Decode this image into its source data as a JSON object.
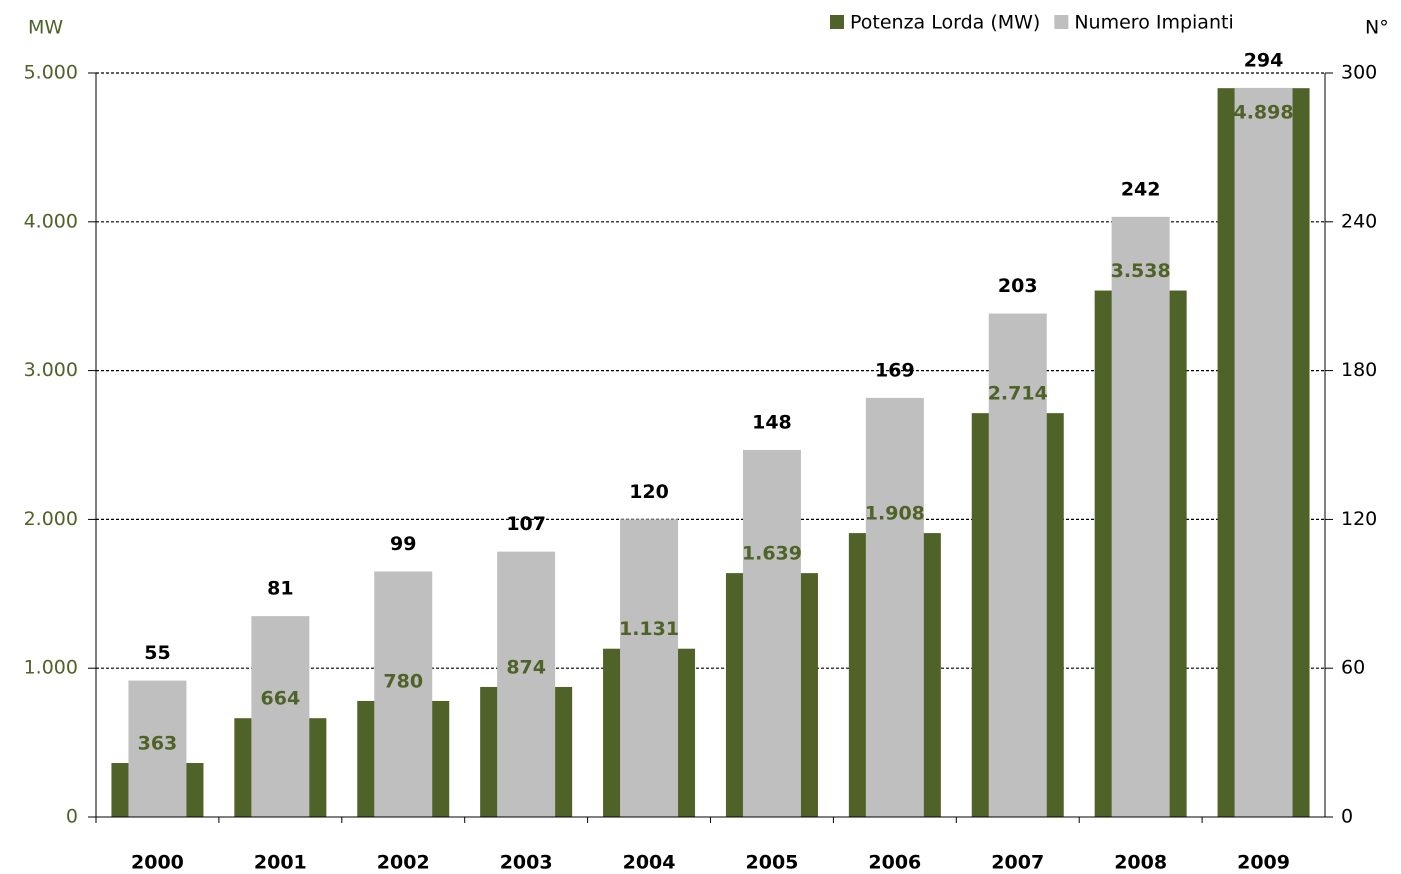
{
  "chart_data": {
    "type": "bar",
    "y_label": "MW",
    "y2_label": "N°",
    "categories": [
      "2000",
      "2001",
      "2002",
      "2003",
      "2004",
      "2005",
      "2006",
      "2007",
      "2008",
      "2009"
    ],
    "series": [
      {
        "name": "Potenza Lorda (MW)",
        "color": "#4f6228",
        "values": [
          363,
          664,
          780,
          874,
          1131,
          1639,
          1908,
          2714,
          3538,
          4898
        ],
        "value_labels": [
          "363",
          "664",
          "780",
          "874",
          "1.131",
          "1.639",
          "1.908",
          "2.714",
          "3.538",
          "4.898"
        ]
      },
      {
        "name": "Numero Impianti",
        "color": "#bfbfbf",
        "axis": "y2",
        "values": [
          55,
          81,
          99,
          107,
          120,
          148,
          169,
          203,
          242,
          294
        ]
      }
    ],
    "ylim": [
      0,
      5000
    ],
    "yticks": [
      0,
      {
        "value": 1000,
        "label": "1.000"
      },
      {
        "value": 2000,
        "label": "2.000"
      },
      {
        "value": 3000,
        "label": "3.000"
      },
      {
        "value": 4000,
        "label": "4.000"
      },
      {
        "value": 5000,
        "label": "5.000"
      }
    ],
    "y2lim": [
      0,
      300
    ],
    "y2ticks": [
      0,
      60,
      120,
      180,
      240,
      300
    ],
    "grid": true,
    "legend": "top-right"
  }
}
